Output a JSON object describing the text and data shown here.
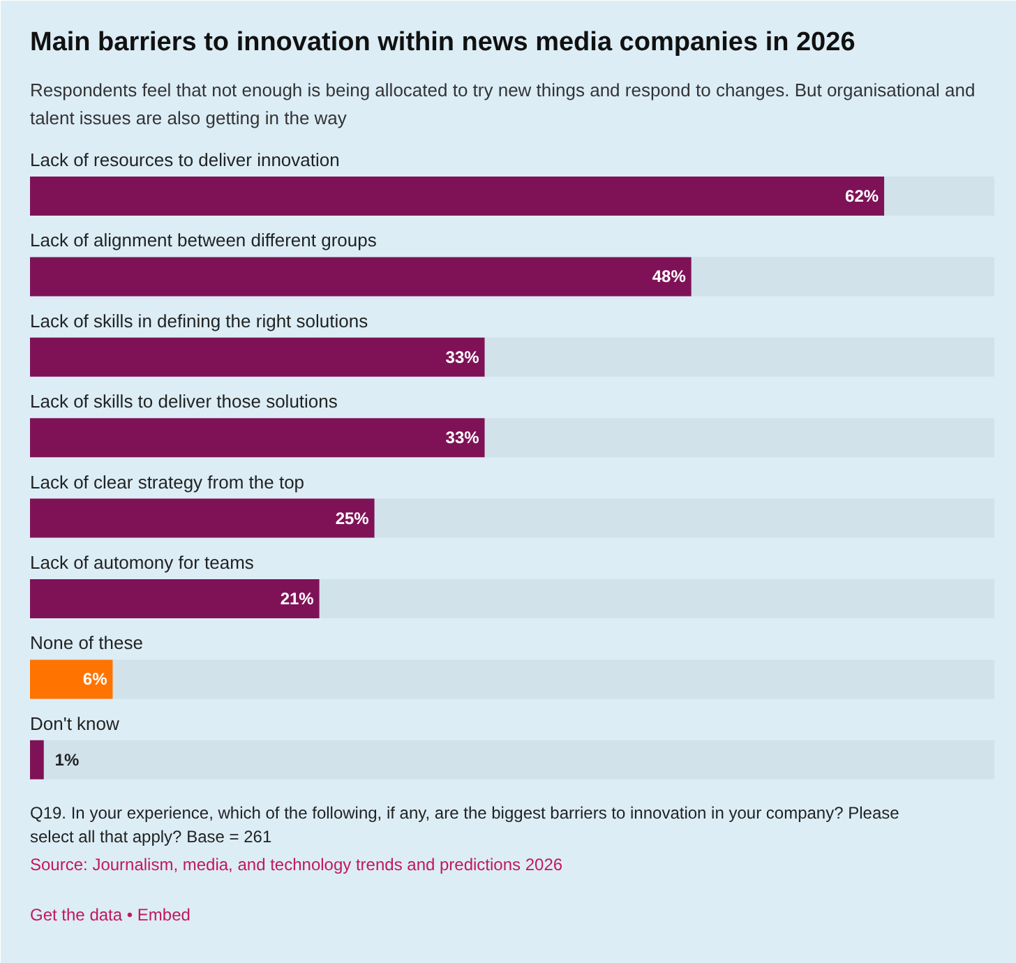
{
  "chart_data": {
    "type": "bar",
    "orientation": "horizontal",
    "title": "Main barriers to innovation within news media companies in 2026",
    "subtitle": "Respondents feel that not enough is being allocated to try new things and respond to changes. But organisational and talent issues are also getting in the way",
    "categories": [
      "Lack of resources to deliver innovation",
      "Lack of alignment between different groups",
      "Lack of skills in defining the right solutions",
      "Lack of skills to deliver those solutions",
      "Lack of clear strategy from the top",
      "Lack of automony for teams",
      "None of these",
      "Don't know"
    ],
    "values": [
      62,
      48,
      33,
      33,
      25,
      21,
      6,
      1
    ],
    "value_labels": [
      "62%",
      "48%",
      "33%",
      "33%",
      "25%",
      "21%",
      "6%",
      "1%"
    ],
    "colors": [
      "#7f1257",
      "#7f1257",
      "#7f1257",
      "#7f1257",
      "#7f1257",
      "#7f1257",
      "#ff7300",
      "#7f1257"
    ],
    "xlim": [
      0,
      70
    ],
    "tick_labels": false,
    "annotations": [
      "Q19. In your experience, which of the following, if any, are the biggest barriers to innovation in your company? Please select all that apply? Base = 261",
      "Source: Journalism, media, and technology trends and predictions 2026",
      "Get the data • Embed"
    ]
  }
}
